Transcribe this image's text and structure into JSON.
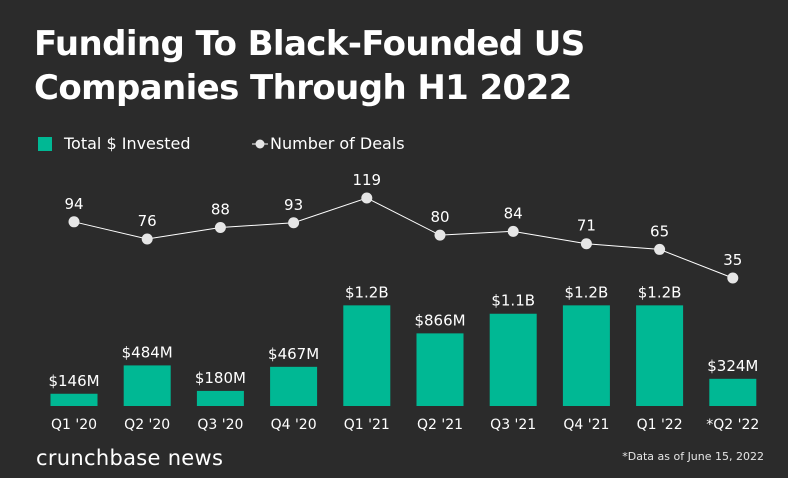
{
  "title": "Funding To Black-Founded US Companies Through H1 2022",
  "legend": {
    "bar_label": "Total $ Invested",
    "line_label": "Number of Deals"
  },
  "colors": {
    "background": "#2b2b2b",
    "bar": "#00b894",
    "line": "#ffffff",
    "marker": "#e6e6e6",
    "text": "#ffffff"
  },
  "chart_data": {
    "type": "bar",
    "title": "Funding To Black-Founded US Companies Through H1 2022",
    "xlabel": "",
    "ylabel": "",
    "categories": [
      "Q1 '20",
      "Q2 '20",
      "Q3 '20",
      "Q4 '20",
      "Q1 '21",
      "Q2 '21",
      "Q3 '21",
      "Q4 '21",
      "Q1 '22",
      "*Q2 '22"
    ],
    "series": [
      {
        "name": "Total $ Invested",
        "type": "bar",
        "unit": "USD millions",
        "values": [
          146,
          484,
          180,
          467,
          1200,
          866,
          1100,
          1200,
          1200,
          324
        ],
        "labels": [
          "$146M",
          "$484M",
          "$180M",
          "$467M",
          "$1.2B",
          "$866M",
          "$1.1B",
          "$1.2B",
          "$1.2B",
          "$324M"
        ]
      },
      {
        "name": "Number of Deals",
        "type": "line",
        "values": [
          94,
          76,
          88,
          93,
          119,
          80,
          84,
          71,
          65,
          35
        ],
        "labels": [
          "94",
          "76",
          "88",
          "93",
          "119",
          "80",
          "84",
          "71",
          "65",
          "35"
        ]
      }
    ],
    "grid": false,
    "legend_position": "top-left"
  },
  "footer": {
    "brand": "crunchbase news",
    "note": "*Data as of June 15, 2022"
  }
}
